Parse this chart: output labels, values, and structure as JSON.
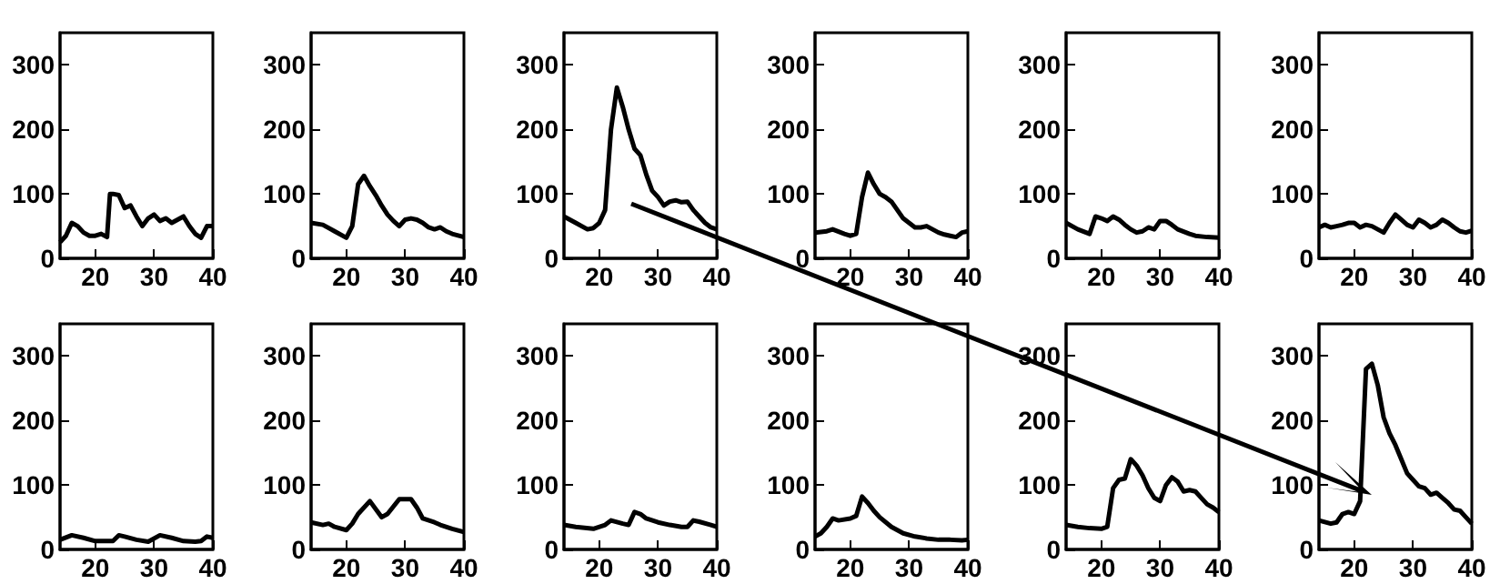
{
  "chart_data": [
    {
      "type": "line",
      "color": "#000000",
      "xlim": [
        14,
        40
      ],
      "ylim": [
        0,
        350
      ],
      "xticks": [
        20,
        30,
        40
      ],
      "yticks": [
        0,
        100,
        200,
        300
      ],
      "x": [
        14,
        15,
        16,
        17,
        18,
        19,
        20,
        21,
        22,
        22.5,
        23,
        24,
        25,
        26,
        27,
        28,
        29,
        30,
        31,
        32,
        33,
        34,
        35,
        36,
        37,
        38,
        39,
        40
      ],
      "values": [
        25,
        35,
        55,
        50,
        40,
        35,
        35,
        38,
        33,
        100,
        100,
        98,
        78,
        82,
        65,
        50,
        62,
        68,
        58,
        62,
        55,
        60,
        65,
        50,
        38,
        32,
        50,
        50
      ]
    },
    {
      "type": "line",
      "color": "#000000",
      "xlim": [
        14,
        40
      ],
      "ylim": [
        0,
        350
      ],
      "xticks": [
        20,
        30,
        40
      ],
      "yticks": [
        0,
        100,
        200,
        300
      ],
      "x": [
        14,
        16,
        18,
        20,
        21,
        22,
        23,
        24,
        25,
        26,
        27,
        28,
        29,
        30,
        31,
        32,
        33,
        34,
        35,
        36,
        37,
        38,
        40
      ],
      "values": [
        55,
        52,
        42,
        32,
        50,
        115,
        128,
        112,
        98,
        82,
        68,
        58,
        50,
        60,
        62,
        60,
        55,
        48,
        45,
        48,
        42,
        38,
        33
      ]
    },
    {
      "type": "line",
      "color": "#000000",
      "xlim": [
        14,
        40
      ],
      "ylim": [
        0,
        350
      ],
      "xticks": [
        20,
        30,
        40
      ],
      "yticks": [
        0,
        100,
        200,
        300
      ],
      "x": [
        14,
        16,
        18,
        19,
        20,
        21,
        22,
        23,
        24,
        25,
        26,
        27,
        28,
        29,
        30,
        31,
        32,
        33,
        34,
        35,
        36,
        37,
        38,
        39,
        40
      ],
      "values": [
        65,
        55,
        45,
        47,
        55,
        75,
        200,
        265,
        235,
        200,
        170,
        160,
        130,
        105,
        95,
        82,
        88,
        90,
        87,
        88,
        75,
        65,
        55,
        48,
        45
      ]
    },
    {
      "type": "line",
      "color": "#000000",
      "xlim": [
        14,
        40
      ],
      "ylim": [
        0,
        350
      ],
      "xticks": [
        20,
        30,
        40
      ],
      "yticks": [
        0,
        100,
        200,
        300
      ],
      "x": [
        14,
        16,
        17,
        19,
        20,
        21,
        22,
        23,
        24,
        25,
        26,
        27,
        28,
        29,
        30,
        31,
        32,
        33,
        34,
        35,
        36,
        37,
        38,
        39,
        40
      ],
      "values": [
        40,
        42,
        45,
        38,
        35,
        38,
        95,
        133,
        115,
        100,
        95,
        88,
        75,
        62,
        55,
        48,
        48,
        50,
        45,
        40,
        37,
        35,
        33,
        40,
        42
      ]
    },
    {
      "type": "line",
      "color": "#000000",
      "xlim": [
        14,
        40
      ],
      "ylim": [
        0,
        350
      ],
      "xticks": [
        20,
        30,
        40
      ],
      "yticks": [
        0,
        100,
        200,
        300
      ],
      "x": [
        14,
        16,
        18,
        19,
        20,
        21,
        22,
        23,
        24,
        25,
        26,
        27,
        28,
        29,
        30,
        31,
        32,
        33,
        35,
        36,
        38,
        40
      ],
      "values": [
        55,
        45,
        38,
        65,
        62,
        58,
        65,
        60,
        52,
        45,
        40,
        42,
        48,
        45,
        58,
        58,
        52,
        45,
        38,
        35,
        33,
        32
      ]
    },
    {
      "type": "line",
      "color": "#000000",
      "xlim": [
        14,
        40
      ],
      "ylim": [
        0,
        350
      ],
      "xticks": [
        20,
        30,
        40
      ],
      "yticks": [
        0,
        100,
        200,
        300
      ],
      "x": [
        14,
        15,
        16,
        17,
        18,
        19,
        20,
        21,
        22,
        23,
        24,
        25,
        26,
        27,
        28,
        29,
        30,
        31,
        32,
        33,
        34,
        35,
        36,
        37,
        38,
        39,
        40
      ],
      "values": [
        48,
        52,
        48,
        50,
        52,
        55,
        55,
        48,
        52,
        50,
        45,
        40,
        55,
        68,
        60,
        52,
        48,
        60,
        55,
        48,
        52,
        60,
        55,
        48,
        42,
        40,
        43
      ]
    },
    {
      "type": "line",
      "color": "#000000",
      "xlim": [
        14,
        40
      ],
      "ylim": [
        0,
        350
      ],
      "xticks": [
        20,
        30,
        40
      ],
      "yticks": [
        0,
        100,
        200,
        300
      ],
      "x": [
        14,
        16,
        18,
        20,
        23,
        24,
        25,
        27,
        29,
        31,
        33,
        35,
        37,
        38,
        39,
        40
      ],
      "values": [
        15,
        22,
        18,
        13,
        13,
        22,
        20,
        15,
        12,
        22,
        18,
        13,
        12,
        13,
        20,
        18
      ]
    },
    {
      "type": "line",
      "color": "#000000",
      "xlim": [
        14,
        40
      ],
      "ylim": [
        0,
        350
      ],
      "xticks": [
        20,
        30,
        40
      ],
      "yticks": [
        0,
        100,
        200,
        300
      ],
      "x": [
        14,
        16,
        17,
        18,
        20,
        21,
        22,
        24,
        26,
        27,
        29,
        31,
        32,
        33,
        35,
        36,
        38,
        40
      ],
      "values": [
        42,
        38,
        40,
        35,
        30,
        40,
        55,
        75,
        50,
        55,
        78,
        78,
        65,
        48,
        42,
        38,
        32,
        27
      ]
    },
    {
      "type": "line",
      "color": "#000000",
      "xlim": [
        14,
        40
      ],
      "ylim": [
        0,
        350
      ],
      "xticks": [
        20,
        30,
        40
      ],
      "yticks": [
        0,
        100,
        200,
        300
      ],
      "x": [
        14,
        16,
        19,
        21,
        22,
        24,
        25,
        26,
        27,
        28,
        30,
        32,
        34,
        35,
        36,
        37,
        39,
        40
      ],
      "values": [
        38,
        35,
        32,
        38,
        45,
        40,
        38,
        58,
        55,
        48,
        42,
        38,
        35,
        35,
        45,
        43,
        38,
        35
      ]
    },
    {
      "type": "line",
      "color": "#000000",
      "xlim": [
        14,
        40
      ],
      "ylim": [
        0,
        350
      ],
      "xticks": [
        20,
        30,
        40
      ],
      "yticks": [
        0,
        100,
        200,
        300
      ],
      "x": [
        14,
        15,
        16,
        17,
        18,
        20,
        21,
        22,
        23,
        24,
        25,
        27,
        29,
        31,
        33,
        35,
        37,
        39,
        40
      ],
      "values": [
        20,
        25,
        35,
        48,
        45,
        48,
        52,
        82,
        72,
        60,
        50,
        35,
        25,
        20,
        17,
        15,
        15,
        14,
        15
      ]
    },
    {
      "type": "line",
      "color": "#000000",
      "xlim": [
        14,
        40
      ],
      "ylim": [
        0,
        350
      ],
      "xticks": [
        20,
        30,
        40
      ],
      "yticks": [
        0,
        100,
        200,
        300
      ],
      "x": [
        14,
        16,
        18,
        20,
        21,
        22,
        23,
        24,
        25,
        26,
        27,
        28,
        29,
        30,
        31,
        32,
        33,
        34,
        35,
        36,
        37,
        38,
        39,
        40
      ],
      "values": [
        38,
        35,
        33,
        32,
        35,
        95,
        108,
        110,
        140,
        130,
        115,
        95,
        80,
        75,
        100,
        112,
        105,
        90,
        92,
        90,
        80,
        70,
        65,
        58
      ]
    },
    {
      "type": "line",
      "color": "#000000",
      "xlim": [
        14,
        40
      ],
      "ylim": [
        0,
        350
      ],
      "xticks": [
        20,
        30,
        40
      ],
      "yticks": [
        0,
        100,
        200,
        300
      ],
      "x": [
        14,
        16,
        17,
        18,
        19,
        20,
        21,
        22,
        23,
        24,
        25,
        26,
        27,
        28,
        29,
        30,
        31,
        32,
        33,
        34,
        35,
        36,
        37,
        38,
        39,
        40
      ],
      "values": [
        45,
        40,
        42,
        55,
        58,
        55,
        75,
        280,
        288,
        255,
        205,
        180,
        162,
        140,
        118,
        108,
        98,
        95,
        85,
        88,
        80,
        72,
        62,
        60,
        50,
        40
      ]
    }
  ]
}
